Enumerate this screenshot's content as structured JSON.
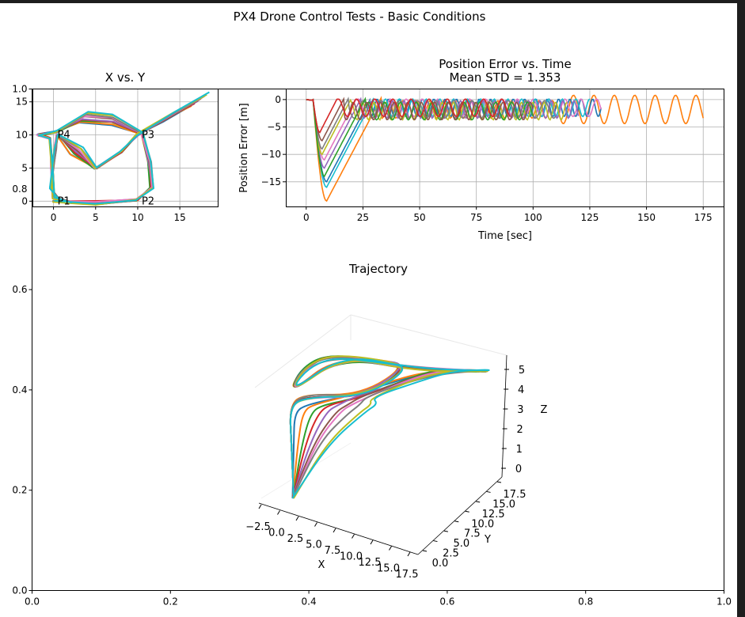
{
  "figure": {
    "suptitle": "PX4 Drone Control Tests - Basic Conditions"
  },
  "colors": [
    "#1f77b4",
    "#ff7f0e",
    "#2ca02c",
    "#d62728",
    "#9467bd",
    "#8c564b",
    "#e377c2",
    "#7f7f7f",
    "#bcbd22",
    "#17becf"
  ],
  "chart_data": [
    {
      "type": "line",
      "id": "background-axes",
      "title": "",
      "xlim": [
        0,
        1
      ],
      "ylim": [
        0,
        1
      ],
      "x_ticks": [
        "0.0",
        "0.2",
        "0.4",
        "0.6",
        "0.8",
        "1.0"
      ],
      "y_ticks": [
        "0.0",
        "0.2",
        "0.4",
        "0.6",
        "0.8",
        "1.0"
      ]
    },
    {
      "type": "line",
      "id": "xy-plot",
      "title": "X vs. Y",
      "xlim": [
        -2.5,
        19.5
      ],
      "ylim": [
        -0.8,
        17
      ],
      "x_ticks": [
        "0",
        "5",
        "10",
        "15"
      ],
      "y_ticks": [
        "0",
        "5",
        "10",
        "15"
      ],
      "grid": true,
      "waypoints": [
        {
          "name": "P1",
          "x": 0,
          "y": 0
        },
        {
          "name": "P2",
          "x": 10,
          "y": 0
        },
        {
          "name": "P3",
          "x": 10,
          "y": 10
        },
        {
          "name": "P4",
          "x": 0,
          "y": 10
        }
      ],
      "series_count": 10,
      "path_shape": "square loop P1-P2-P3-P4 with diagonal and excursion to (18.5, 17)"
    },
    {
      "type": "line",
      "id": "error-plot",
      "title": "Position Error vs. Time",
      "subtitle": "Mean STD = 1.353",
      "xlabel": "Time [sec]",
      "ylabel": "Position Error [m]",
      "xlim": [
        -9,
        184
      ],
      "ylim": [
        -19.5,
        2
      ],
      "x_ticks": [
        0,
        25,
        50,
        75,
        100,
        125,
        150,
        175
      ],
      "y_ticks": [
        0,
        -5,
        -10,
        -15
      ],
      "grid": true,
      "series": [
        {
          "color_index": 0,
          "min": -15.0,
          "t_min": 9,
          "duration": 130
        },
        {
          "color_index": 1,
          "min": -18.5,
          "t_min": 9,
          "duration": 175
        },
        {
          "color_index": 2,
          "min": -14.0,
          "t_min": 8,
          "duration": 100
        },
        {
          "color_index": 3,
          "min": -6.0,
          "t_min": 6,
          "duration": 90
        },
        {
          "color_index": 4,
          "min": -12.5,
          "t_min": 8,
          "duration": 120
        },
        {
          "color_index": 5,
          "min": -7.5,
          "t_min": 7,
          "duration": 100
        },
        {
          "color_index": 6,
          "min": -11.0,
          "t_min": 8,
          "duration": 130
        },
        {
          "color_index": 7,
          "min": -9.0,
          "t_min": 7,
          "duration": 110
        },
        {
          "color_index": 8,
          "min": -10.0,
          "t_min": 7,
          "duration": 115
        },
        {
          "color_index": 9,
          "min": -16.0,
          "t_min": 9,
          "duration": 125
        }
      ]
    },
    {
      "type": "line",
      "id": "trajectory-3d",
      "title": "Trajectory",
      "xlabel": "X",
      "ylabel": "Y",
      "zlabel": "Z",
      "x_ticks": [
        "−2.5",
        "0.0",
        "2.5",
        "5.0",
        "7.5",
        "10.0",
        "12.5",
        "15.0",
        "17.5"
      ],
      "y_ticks": [
        "0.0",
        "2.5",
        "5.0",
        "7.5",
        "10.0",
        "12.5",
        "15.0",
        "17.5"
      ],
      "z_ticks": [
        "0",
        "1",
        "2",
        "3",
        "4",
        "5"
      ],
      "series_count": 10
    }
  ]
}
